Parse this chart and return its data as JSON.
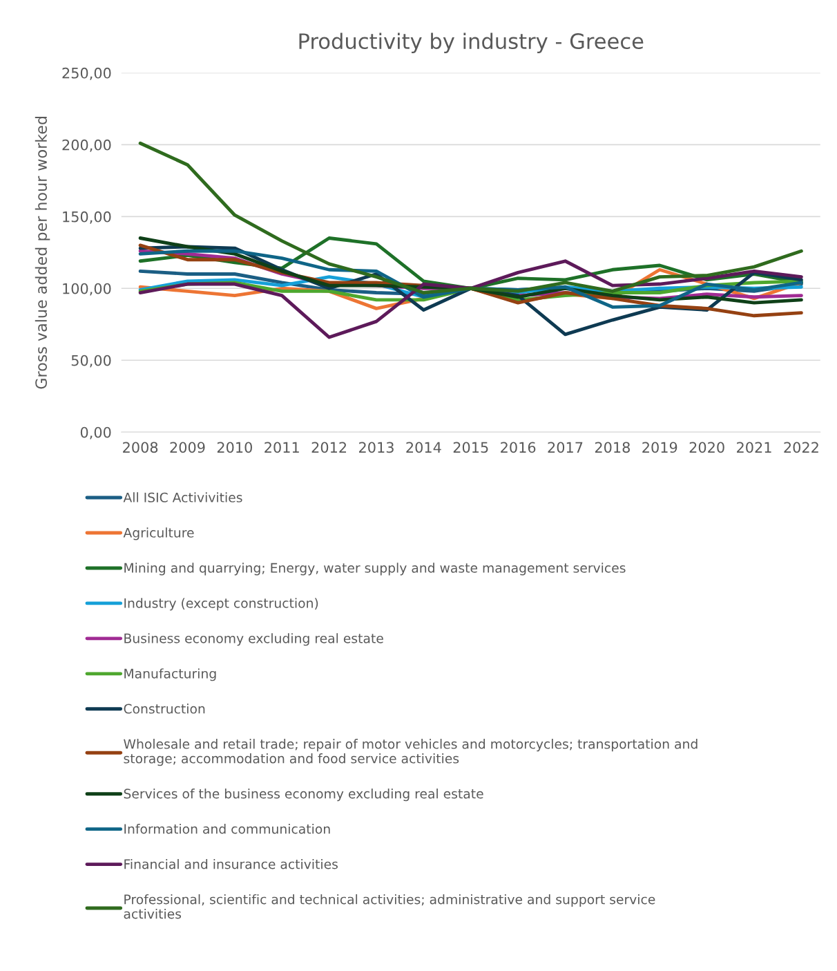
{
  "chart_data": {
    "type": "line",
    "title": "Productivity by industry - Greece",
    "ylabel": "Gross value added per hour worked",
    "categories": [
      "2008",
      "2009",
      "2010",
      "2011",
      "2012",
      "2013",
      "2014",
      "2015",
      "2016",
      "2017",
      "2018",
      "2019",
      "2020",
      "2021",
      "2022"
    ],
    "ylim": [
      0,
      250
    ],
    "yticks": [
      {
        "value": 0,
        "label": "0,00"
      },
      {
        "value": 50,
        "label": "50,00"
      },
      {
        "value": 100,
        "label": "100,00"
      },
      {
        "value": 150,
        "label": "150,00"
      },
      {
        "value": 200,
        "label": "200,00"
      },
      {
        "value": 250,
        "label": "250,00"
      }
    ],
    "grid": "y",
    "legend": "bottom",
    "marker": "none",
    "line_style": "solid",
    "series": [
      {
        "name": "All ISIC Activivities",
        "color": "#1b5e84",
        "values": [
          112,
          110,
          110,
          104,
          99,
          97,
          96,
          100,
          99,
          100,
          98,
          98,
          100,
          98,
          103
        ]
      },
      {
        "name": "Agriculture",
        "color": "#ed7534",
        "values": [
          101,
          98,
          95,
          100,
          98,
          86,
          93,
          100,
          91,
          96,
          93,
          113,
          103,
          93,
          104
        ]
      },
      {
        "name": "Mining and quarrying; Energy, water supply and waste management services",
        "color": "#1e7128",
        "values": [
          119,
          123,
          118,
          114,
          135,
          131,
          105,
          100,
          107,
          106,
          113,
          116,
          106,
          110,
          104
        ]
      },
      {
        "name": "Industry (except construction)",
        "color": "#16a0d8",
        "values": [
          99,
          105,
          106,
          102,
          108,
          103,
          94,
          100,
          97,
          101,
          98,
          100,
          101,
          100,
          101
        ]
      },
      {
        "name": "Business economy excluding real estate",
        "color": "#a02b93",
        "values": [
          126,
          124,
          121,
          110,
          103,
          102,
          100,
          100,
          95,
          97,
          94,
          93,
          96,
          94,
          95
        ]
      },
      {
        "name": "Manufacturing",
        "color": "#4ea72e",
        "values": [
          98,
          103,
          104,
          98,
          98,
          92,
          92,
          100,
          92,
          95,
          97,
          97,
          102,
          104,
          105
        ]
      },
      {
        "name": "Construction",
        "color": "#0e3a52",
        "values": [
          128,
          129,
          128,
          113,
          100,
          110,
          85,
          100,
          95,
          68,
          78,
          87,
          85,
          111,
          106
        ]
      },
      {
        "name": "Wholesale and retail trade; repair of motor vehicles and motorcycles; transportation and storage; accommodation and food service activities",
        "color": "#954112",
        "values": [
          130,
          120,
          120,
          111,
          104,
          104,
          102,
          100,
          90,
          97,
          93,
          88,
          86,
          81,
          83
        ]
      },
      {
        "name": "Services of the business economy excluding real estate",
        "color": "#0f4018",
        "values": [
          135,
          129,
          124,
          112,
          102,
          102,
          101,
          100,
          94,
          100,
          95,
          92,
          94,
          90,
          92
        ]
      },
      {
        "name": "Information and communication",
        "color": "#0f6587",
        "values": [
          124,
          126,
          126,
          121,
          113,
          112,
          94,
          100,
          99,
          101,
          87,
          88,
          103,
          99,
          104
        ]
      },
      {
        "name": "Financial and insurance activities",
        "color": "#5d1a5a",
        "values": [
          97,
          103,
          103,
          95,
          66,
          77,
          103,
          100,
          111,
          119,
          102,
          103,
          107,
          112,
          108
        ]
      },
      {
        "name": "Professional, scientific and technical activities; administrative and support service activities",
        "color": "#2f6b1e",
        "values": [
          201,
          186,
          151,
          133,
          117,
          108,
          97,
          100,
          98,
          104,
          98,
          108,
          109,
          115,
          126
        ]
      }
    ]
  }
}
